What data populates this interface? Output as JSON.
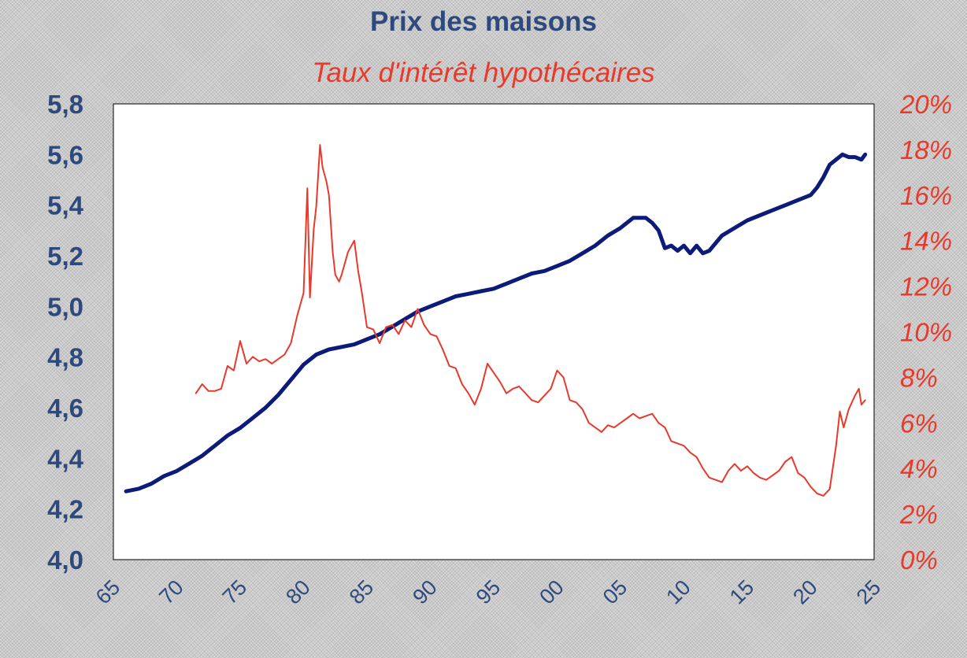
{
  "chart_data": {
    "type": "line",
    "title": "Prix des maisons",
    "subtitle": "Taux d'intérêt hypothécaires",
    "colors": {
      "price": "#0c1a7a",
      "rate": "#e8392b",
      "left_axis": "#2e4a7d",
      "right_axis": "#e8392b"
    },
    "x_ticks": [
      "65",
      "70",
      "75",
      "80",
      "85",
      "90",
      "95",
      "00",
      "05",
      "10",
      "15",
      "20",
      "25"
    ],
    "x_range": [
      1965,
      2025
    ],
    "y_left_ticks": [
      "4,0",
      "4,2",
      "4,4",
      "4,6",
      "4,8",
      "5,0",
      "5,2",
      "5,4",
      "5,6",
      "5,8"
    ],
    "y_left_range": [
      4.0,
      5.8
    ],
    "y_right_ticks": [
      "0%",
      "2%",
      "4%",
      "6%",
      "8%",
      "10%",
      "12%",
      "14%",
      "16%",
      "18%",
      "20%"
    ],
    "y_right_range": [
      0,
      20
    ],
    "grid": false,
    "series": [
      {
        "name": "Prix des maisons",
        "axis": "left",
        "x": [
          1966.0,
          1967.0,
          1968.0,
          1969.0,
          1970.0,
          1971.0,
          1972.0,
          1973.0,
          1974.0,
          1975.0,
          1976.0,
          1977.0,
          1978.0,
          1979.0,
          1980.0,
          1981.0,
          1982.0,
          1983.0,
          1984.0,
          1985.0,
          1986.0,
          1987.0,
          1988.0,
          1989.0,
          1990.0,
          1991.0,
          1992.0,
          1993.0,
          1994.0,
          1995.0,
          1996.0,
          1997.0,
          1998.0,
          1999.0,
          2000.0,
          2001.0,
          2002.0,
          2003.0,
          2004.0,
          2005.0,
          2006.0,
          2006.5,
          2007.0,
          2007.5,
          2008.0,
          2008.5,
          2009.0,
          2009.5,
          2010.0,
          2010.5,
          2011.0,
          2011.5,
          2012.0,
          2012.5,
          2013.0,
          2014.0,
          2015.0,
          2016.0,
          2017.0,
          2018.0,
          2019.0,
          2020.0,
          2020.5,
          2021.0,
          2021.5,
          2022.0,
          2022.5,
          2023.0,
          2023.5,
          2024.0,
          2024.3
        ],
        "values": [
          4.27,
          4.28,
          4.3,
          4.33,
          4.35,
          4.38,
          4.41,
          4.45,
          4.49,
          4.52,
          4.56,
          4.6,
          4.65,
          4.71,
          4.77,
          4.81,
          4.83,
          4.84,
          4.85,
          4.87,
          4.89,
          4.92,
          4.95,
          4.98,
          5.0,
          5.02,
          5.04,
          5.05,
          5.06,
          5.07,
          5.09,
          5.11,
          5.13,
          5.14,
          5.16,
          5.18,
          5.21,
          5.24,
          5.28,
          5.31,
          5.35,
          5.35,
          5.35,
          5.33,
          5.3,
          5.23,
          5.24,
          5.22,
          5.24,
          5.21,
          5.24,
          5.21,
          5.22,
          5.25,
          5.28,
          5.31,
          5.34,
          5.36,
          5.38,
          5.4,
          5.42,
          5.44,
          5.47,
          5.51,
          5.56,
          5.58,
          5.6,
          5.59,
          5.59,
          5.58,
          5.6
        ]
      },
      {
        "name": "Taux d'intérêt hypothécaires",
        "axis": "right",
        "x": [
          1971.5,
          1972.0,
          1972.5,
          1973.0,
          1973.5,
          1974.0,
          1974.5,
          1975.0,
          1975.5,
          1976.0,
          1976.5,
          1977.0,
          1977.5,
          1978.0,
          1978.5,
          1979.0,
          1979.5,
          1980.0,
          1980.3,
          1980.5,
          1980.8,
          1981.0,
          1981.3,
          1981.5,
          1981.8,
          1982.0,
          1982.3,
          1982.5,
          1982.8,
          1983.0,
          1983.5,
          1984.0,
          1984.3,
          1984.6,
          1985.0,
          1985.5,
          1986.0,
          1986.5,
          1987.0,
          1987.5,
          1988.0,
          1988.5,
          1989.0,
          1989.5,
          1990.0,
          1990.5,
          1991.0,
          1991.5,
          1992.0,
          1992.5,
          1993.0,
          1993.5,
          1994.0,
          1994.5,
          1995.0,
          1995.5,
          1996.0,
          1996.5,
          1997.0,
          1997.5,
          1998.0,
          1998.5,
          1999.0,
          1999.5,
          2000.0,
          2000.5,
          2001.0,
          2001.5,
          2002.0,
          2002.5,
          2003.0,
          2003.5,
          2004.0,
          2004.5,
          2005.0,
          2005.5,
          2006.0,
          2006.5,
          2007.0,
          2007.5,
          2008.0,
          2008.5,
          2009.0,
          2009.5,
          2010.0,
          2010.5,
          2011.0,
          2011.5,
          2012.0,
          2012.5,
          2013.0,
          2013.5,
          2014.0,
          2014.5,
          2015.0,
          2015.5,
          2016.0,
          2016.5,
          2017.0,
          2017.5,
          2018.0,
          2018.5,
          2019.0,
          2019.5,
          2020.0,
          2020.5,
          2021.0,
          2021.5,
          2022.0,
          2022.3,
          2022.6,
          2023.0,
          2023.5,
          2023.8,
          2024.0,
          2024.3
        ],
        "values": [
          7.3,
          7.7,
          7.4,
          7.4,
          7.5,
          8.5,
          8.3,
          9.6,
          8.6,
          8.9,
          8.7,
          8.8,
          8.6,
          8.8,
          9.0,
          9.5,
          10.7,
          11.7,
          16.3,
          11.5,
          14.5,
          15.5,
          18.2,
          17.2,
          16.6,
          16.0,
          13.5,
          12.5,
          12.2,
          12.5,
          13.5,
          14.0,
          12.7,
          11.7,
          10.2,
          10.1,
          9.5,
          10.2,
          10.3,
          9.9,
          10.5,
          10.2,
          11.0,
          10.3,
          9.9,
          9.8,
          9.2,
          8.5,
          8.4,
          7.7,
          7.3,
          6.8,
          7.5,
          8.6,
          8.2,
          7.8,
          7.3,
          7.5,
          7.6,
          7.3,
          7.0,
          6.9,
          7.2,
          7.5,
          8.3,
          8.0,
          7.0,
          6.9,
          6.6,
          6.0,
          5.8,
          5.6,
          5.9,
          5.8,
          6.0,
          6.2,
          6.4,
          6.2,
          6.3,
          6.4,
          6.0,
          5.8,
          5.2,
          5.1,
          5.0,
          4.7,
          4.5,
          4.0,
          3.6,
          3.5,
          3.4,
          3.9,
          4.2,
          3.9,
          4.1,
          3.8,
          3.6,
          3.5,
          3.7,
          3.9,
          4.3,
          4.5,
          3.8,
          3.6,
          3.2,
          2.9,
          2.8,
          3.1,
          5.0,
          6.5,
          5.8,
          6.6,
          7.2,
          7.5,
          6.8,
          7.0
        ]
      }
    ]
  }
}
